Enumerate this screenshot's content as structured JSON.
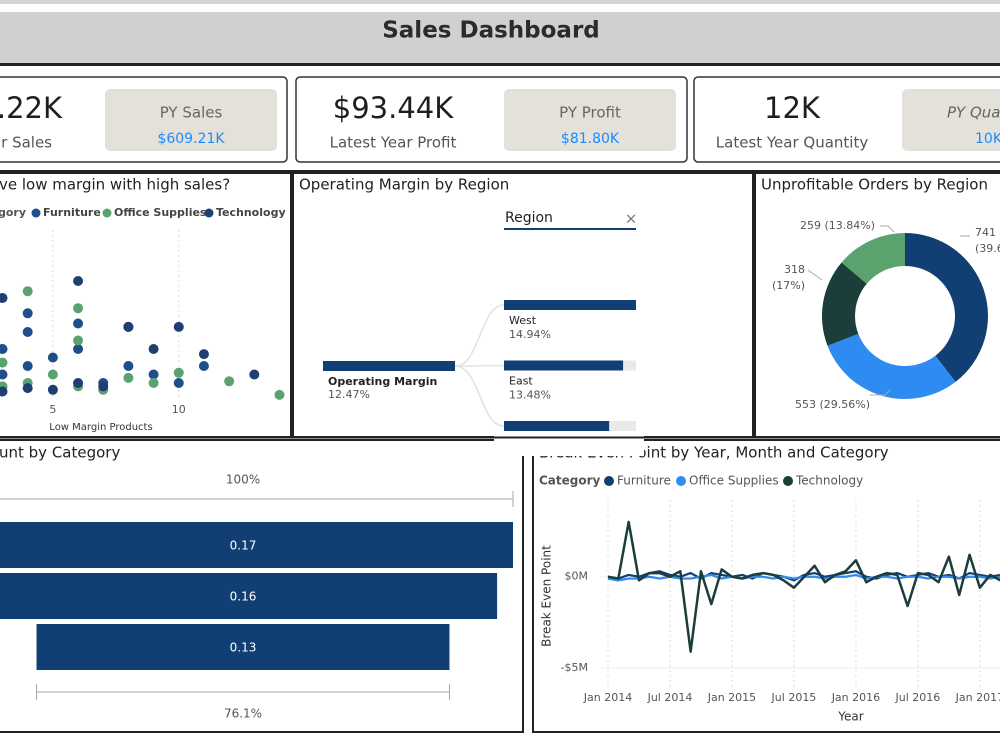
{
  "header": {
    "title": "Sales Dashboard"
  },
  "kpis": [
    {
      "value": ".22K",
      "label": "ar Sales",
      "py_label": "PY Sales",
      "py_value": "$609.21K"
    },
    {
      "value": "$93.44K",
      "label": "Latest Year Profit",
      "py_label": "PY Profit",
      "py_value": "$81.80K"
    },
    {
      "value": "12K",
      "label": "Latest Year Quantity",
      "py_label": "PY Qua",
      "py_value": "10K"
    }
  ],
  "scatter": {
    "type": "scatter",
    "title": "ve low margin with high sales?",
    "legend_title": "gory",
    "x_label": "Low Margin Products",
    "xlim": [
      2.9,
      14.1
    ],
    "xticks": [
      5,
      10
    ],
    "ylim": [
      0,
      10
    ],
    "series": [
      {
        "name": "Furniture",
        "color": "#1f4e8c",
        "x": [
          3,
          3,
          4,
          4,
          4,
          5,
          6,
          6,
          7,
          8,
          8,
          9,
          10,
          11
        ],
        "y": [
          1.5,
          3,
          2,
          4,
          5.1,
          2.5,
          4.5,
          3,
          1,
          2,
          4.3,
          1.5,
          1,
          2
        ]
      },
      {
        "name": "Office Supplies",
        "color": "#5aa36f",
        "x": [
          3,
          3,
          4,
          4,
          5,
          6,
          6,
          6,
          7,
          8,
          9,
          10,
          12,
          14
        ],
        "y": [
          0.8,
          2.2,
          1,
          6.4,
          1.5,
          0.8,
          3.5,
          5.4,
          0.6,
          1.3,
          1,
          1.6,
          1.1,
          0.3
        ]
      },
      {
        "name": "Technology",
        "color": "#1f3f73",
        "x": [
          3,
          3,
          4,
          5,
          6,
          6,
          7,
          8,
          9,
          10,
          11,
          13
        ],
        "y": [
          6,
          0.5,
          0.7,
          0.6,
          7,
          1,
          0.8,
          4.3,
          3,
          4.3,
          2.7,
          1.5
        ]
      }
    ]
  },
  "decomposition": {
    "title": "Operating Margin by Region",
    "filter_label": "Region",
    "close": "×",
    "color": "#123f73",
    "root": {
      "label": "Operating Margin",
      "value": 12.47,
      "value_label": "12.47%"
    },
    "nodes": [
      {
        "name": "West",
        "value": 14.94,
        "value_label": "14.94%"
      },
      {
        "name": "East",
        "value": 13.48,
        "value_label": "13.48%"
      },
      {
        "name": null,
        "value": 11.9,
        "value_label": null
      }
    ]
  },
  "donut": {
    "type": "pie",
    "title": "Unprofitable Orders by Region",
    "values": [
      741,
      553,
      318,
      259
    ],
    "colors": [
      "#123f73",
      "#2e8bf2",
      "#1b3e3b",
      "#5aa36f"
    ],
    "value_labels": [
      [
        "741",
        "(39.6"
      ],
      [
        "553 (29.56%)"
      ],
      [
        "318",
        "(17%)"
      ],
      [
        "259 (13.84%)"
      ]
    ]
  },
  "funnel": {
    "type": "funnel",
    "title": "unt by Category",
    "top_label": "100%",
    "bottom_label": "76.1%",
    "color": "#123f73",
    "values": [
      0.17,
      0.16,
      0.13
    ]
  },
  "line": {
    "type": "line",
    "title": "Break Even Point by Year, Month and Category",
    "legend_title": "Category",
    "y_label": "Break Even Point",
    "x_label": "Year",
    "ylim": [
      -6.2,
      4.2
    ],
    "yticks": [
      {
        "value": 0,
        "label": "$0M"
      },
      {
        "value": -5,
        "label": "-$5M"
      }
    ],
    "categories": [
      "Jan 2014",
      null,
      null,
      null,
      null,
      null,
      "Jul 2014",
      null,
      null,
      null,
      null,
      null,
      "Jan 2015",
      null,
      null,
      null,
      null,
      null,
      "Jul 2015",
      null,
      null,
      null,
      null,
      null,
      "Jan 2016",
      null,
      null,
      null,
      null,
      null,
      "Jul 2016",
      null,
      null,
      null,
      null,
      null,
      "Jan 2017",
      null,
      null
    ],
    "series": [
      {
        "name": "Furniture",
        "color": "#123f73",
        "values": [
          0,
          -0.1,
          0.1,
          0,
          0.2,
          0.3,
          0.1,
          0,
          0.2,
          -0.1,
          0.2,
          0.1,
          0,
          0.1,
          -0.1,
          0.2,
          0.1,
          0,
          -0.2,
          0.1,
          0.2,
          0,
          0.1,
          0.2,
          0.3,
          0,
          -0.1,
          0.1,
          0.2,
          0,
          0.1,
          0.2,
          0,
          0.1,
          -0.1,
          0.2,
          0.1,
          0,
          0.1
        ]
      },
      {
        "name": "Office Supplies",
        "color": "#2e8bf2",
        "values": [
          -0.1,
          -0.2,
          -0.1,
          -0.1,
          0,
          -0.1,
          0,
          -0.1,
          -0.1,
          0,
          0.1,
          -0.1,
          0,
          -0.1,
          0,
          0,
          -0.1,
          0,
          -0.1,
          0,
          0,
          -0.1,
          0,
          0,
          0.1,
          -0.1,
          0,
          0,
          -0.1,
          0,
          0,
          -0.1,
          0,
          0,
          -0.1,
          0,
          0,
          -0.1,
          0
        ]
      },
      {
        "name": "Technology",
        "color": "#1b3e3b",
        "values": [
          0,
          -0.1,
          3.0,
          -0.2,
          0.2,
          0.2,
          0,
          0.3,
          -4.1,
          0.3,
          -1.5,
          0.4,
          0,
          -0.1,
          0.1,
          0.2,
          0.1,
          -0.2,
          -0.6,
          0,
          0.6,
          -0.3,
          0.1,
          0.3,
          0.9,
          -0.3,
          0,
          0.2,
          0.1,
          -1.6,
          0.2,
          0.1,
          -0.3,
          1.1,
          -1.0,
          1.2,
          -0.6,
          0.1,
          -0.2
        ]
      }
    ]
  }
}
